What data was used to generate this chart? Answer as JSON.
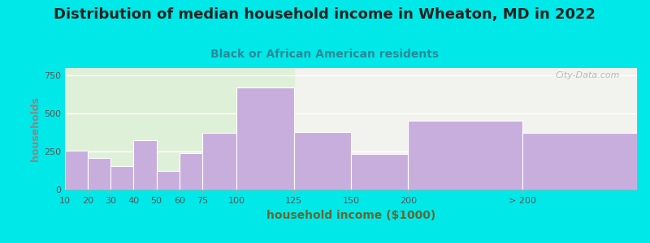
{
  "title": "Distribution of median household income in Wheaton, MD in 2022",
  "subtitle": "Black or African American residents",
  "xlabel": "household income ($1000)",
  "ylabel": "households",
  "bar_labels": [
    "10",
    "20",
    "30",
    "40",
    "50",
    "60",
    "75",
    "100",
    "125",
    "150",
    "200",
    "> 200"
  ],
  "bar_edges": [
    0,
    10,
    20,
    30,
    40,
    50,
    60,
    75,
    100,
    125,
    150,
    200,
    250
  ],
  "bar_values": [
    255,
    210,
    155,
    325,
    125,
    240,
    375,
    670,
    380,
    235,
    455,
    375
  ],
  "bar_color": "#c8aedd",
  "bar_edgecolor": "#ffffff",
  "background_outer": "#00e8e8",
  "background_plot_left": "#dff0d8",
  "background_plot_right": "#f2f2ee",
  "title_color": "#222222",
  "subtitle_color": "#2a8a9a",
  "ylabel_color": "#888888",
  "xlabel_color": "#666633",
  "tick_color": "#555555",
  "title_fontsize": 13,
  "subtitle_fontsize": 10,
  "ylabel_fontsize": 9,
  "xlabel_fontsize": 10,
  "tick_fontsize": 8,
  "yticks": [
    0,
    250,
    500,
    750
  ],
  "ylim": [
    0,
    800
  ],
  "xlim_left": 0,
  "xlim_right": 250,
  "green_bg_end": 100,
  "watermark": "City-Data.com"
}
